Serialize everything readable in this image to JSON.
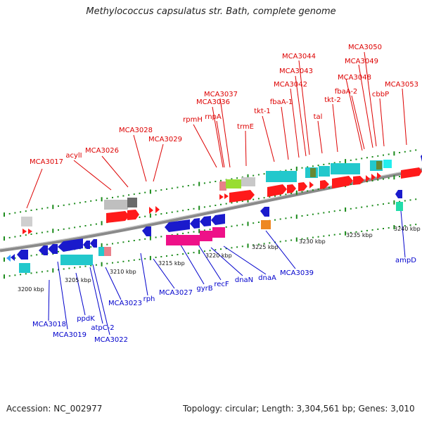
{
  "header": {
    "title": "Methylococcus capsulatus str. Bath, complete genome"
  },
  "footer": {
    "accession": "Accession: NC_002977",
    "stats": "Topology: circular; Length: 3,304,561 bp; Genes: 3,010"
  },
  "colors": {
    "top_label": "#dd0000",
    "bottom_label": "#0000cc",
    "backbone": "#8a8a8a",
    "tick": "#1a8a1a"
  },
  "scale": [
    "3200 kbp",
    "3205 kbp",
    "3210 kbp",
    "3215 kbp",
    "3220 kbp",
    "3225 kbp",
    "3230 kbp",
    "3235 kbp",
    "3240 kbp"
  ],
  "top_labels": [
    "MCA3017",
    "acylI",
    "MCA3026",
    "MCA3028",
    "MCA3029",
    "rpmH",
    "MCA3036",
    "MCA3037",
    "rnpA",
    "trmE",
    "tkt-1",
    "fbaA-1",
    "MCA3042",
    "MCA3043",
    "MCA3044",
    "tal",
    "tkt-2",
    "MCA3048",
    "fbaA-2",
    "MCA3049",
    "MCA3050",
    "cbbP",
    "MCA3053"
  ],
  "bottom_labels": [
    "MCA3018",
    "MCA3019",
    "ppdK",
    "atpC-2",
    "MCA3022",
    "MCA3023",
    "rph",
    "MCA3027",
    "gyrB",
    "recF",
    "dnaN",
    "dnaA",
    "MCA3039",
    "ampD"
  ]
}
